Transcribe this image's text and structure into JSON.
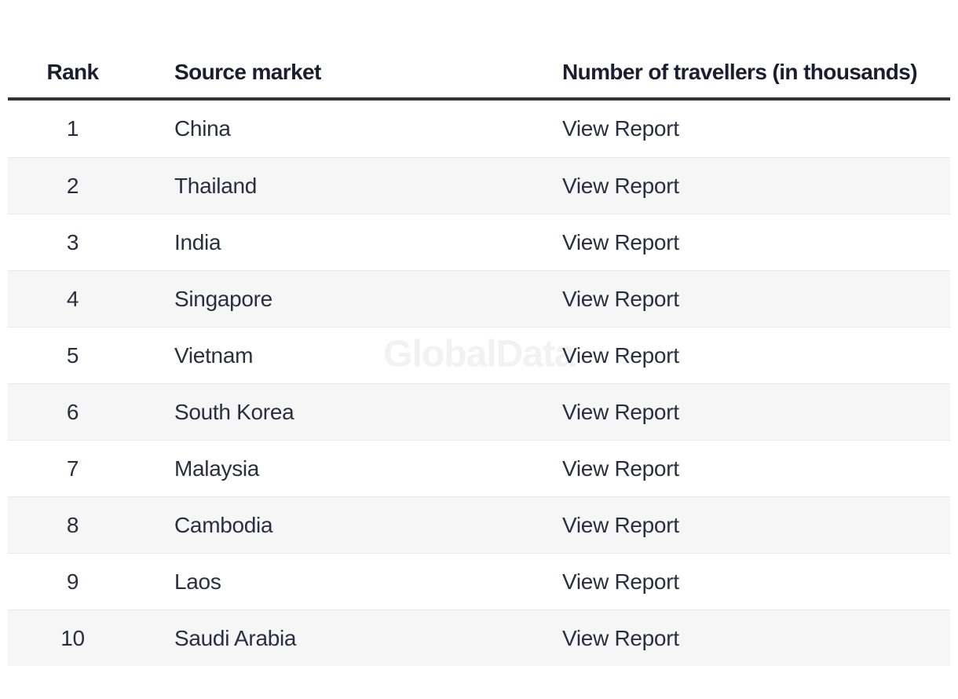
{
  "colors": {
    "page_bg": "#ffffff",
    "header_text": "#1d1d32",
    "body_text": "#2d2d42",
    "header_rule": "#323238",
    "row_stripe": "#f6f6f7",
    "row_border": "#e8e8ea",
    "watermark": "#f2f2f3"
  },
  "watermark": {
    "text": "GlobalData"
  },
  "table": {
    "columns": [
      {
        "id": "rank",
        "label": "Rank"
      },
      {
        "id": "source_market",
        "label": "Source market"
      },
      {
        "id": "travellers",
        "label": "Number of travellers (in thousands)"
      }
    ],
    "rows": [
      {
        "rank": "1",
        "market": "China",
        "report": "View Report"
      },
      {
        "rank": "2",
        "market": "Thailand",
        "report": "View Report"
      },
      {
        "rank": "3",
        "market": "India",
        "report": "View Report"
      },
      {
        "rank": "4",
        "market": "Singapore",
        "report": "View Report"
      },
      {
        "rank": "5",
        "market": "Vietnam",
        "report": "View Report"
      },
      {
        "rank": "6",
        "market": "South Korea",
        "report": "View Report"
      },
      {
        "rank": "7",
        "market": "Malaysia",
        "report": "View Report"
      },
      {
        "rank": "8",
        "market": "Cambodia",
        "report": "View Report"
      },
      {
        "rank": "9",
        "market": "Laos",
        "report": "View Report"
      },
      {
        "rank": "10",
        "market": "Saudi Arabia",
        "report": "View Report"
      }
    ]
  }
}
